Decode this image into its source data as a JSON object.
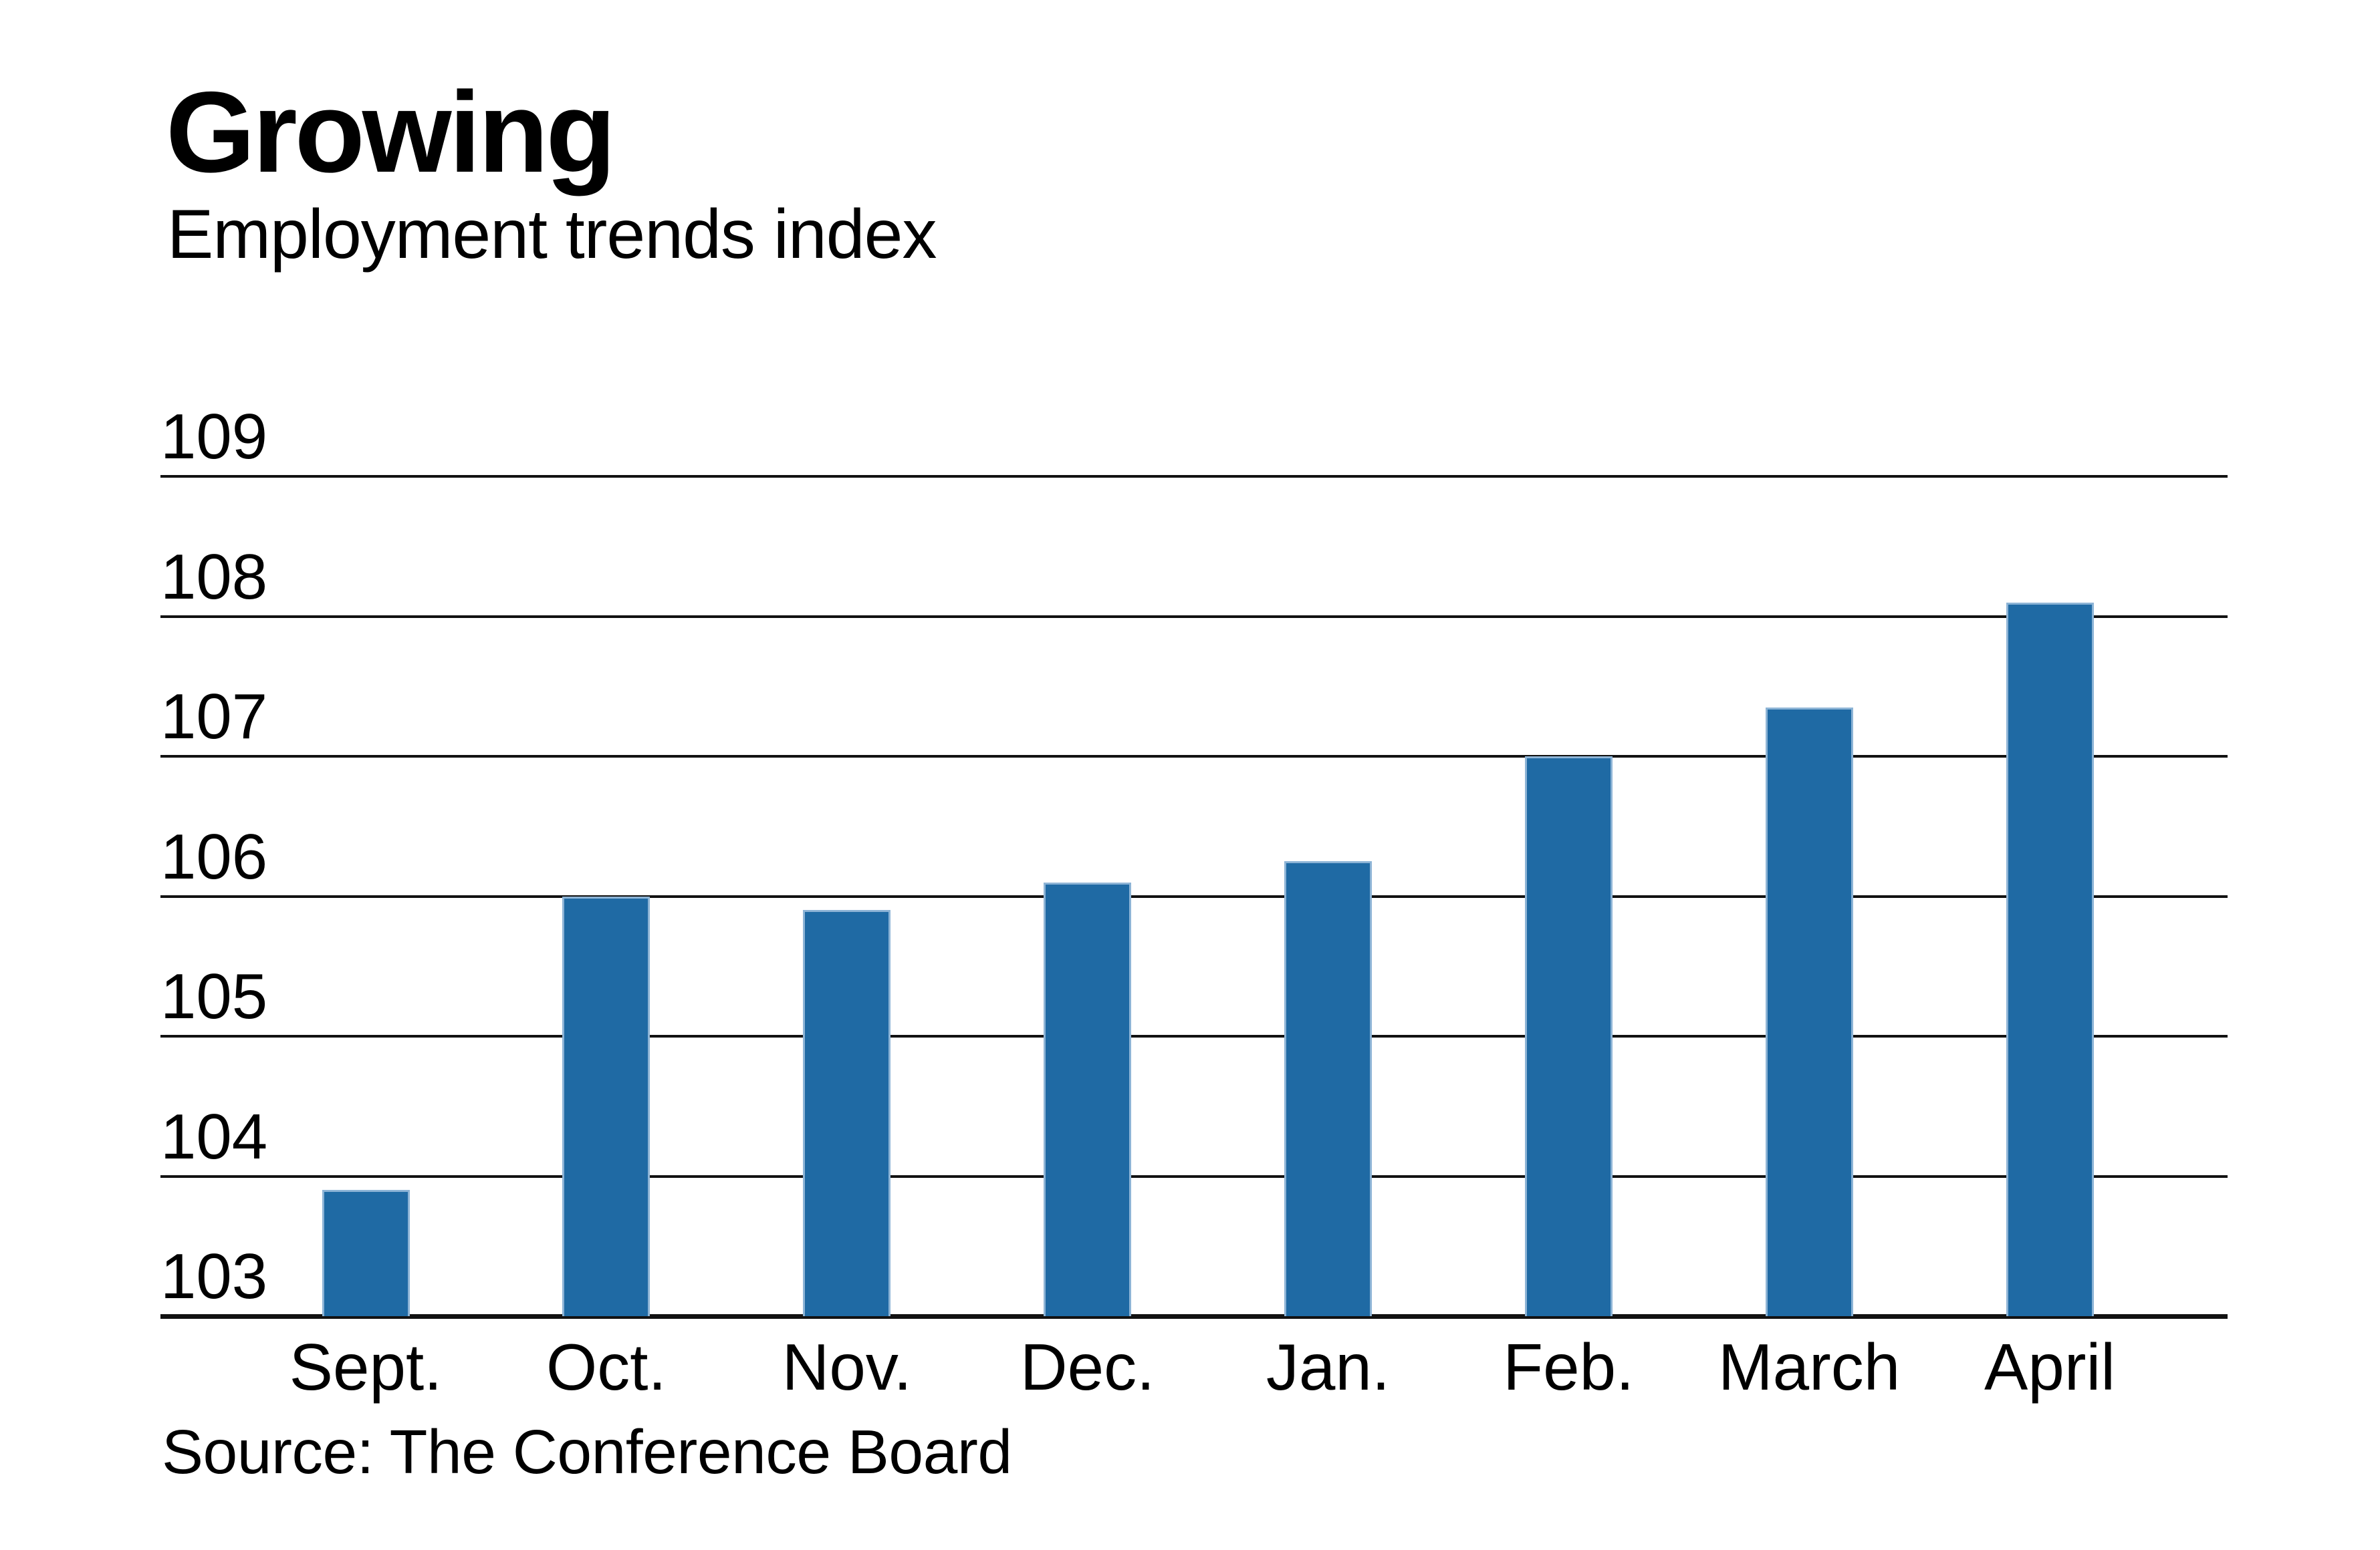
{
  "header": {
    "title": "Growing",
    "subtitle": "Employment trends index"
  },
  "footer": {
    "source": "Source: The Conference Board"
  },
  "chart_data": {
    "type": "bar",
    "title": "Growing",
    "subtitle": "Employment trends index",
    "categories": [
      "Sept.",
      "Oct.",
      "Nov.",
      "Dec.",
      "Jan.",
      "Feb.",
      "March",
      "April"
    ],
    "values": [
      103.9,
      106.0,
      105.9,
      106.1,
      106.25,
      107.0,
      107.35,
      108.1
    ],
    "series_name": "Employment trends index",
    "ylim": [
      103,
      109
    ],
    "yticks": [
      103,
      104,
      105,
      106,
      107,
      108,
      109
    ],
    "xlabel": "",
    "ylabel": "",
    "grid": true,
    "legend": false,
    "bars_start_at": 103,
    "source": "Source: The Conference Board",
    "colors": {
      "bar_fill": "#1f6aa4",
      "bar_edge": "#8db4d6",
      "grid_line": "#121212",
      "text": "#000000",
      "background": "#ffffff"
    }
  }
}
